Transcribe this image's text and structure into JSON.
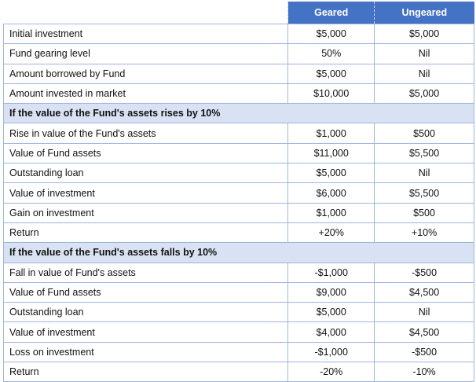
{
  "table": {
    "header": [
      "Geared",
      "Ungeared"
    ],
    "rows": [
      [
        "Initial investment",
        "$5,000",
        "$5,000"
      ],
      [
        "Fund gearing level",
        "50%",
        "Nil"
      ],
      [
        "Amount borrowed by Fund",
        "$5,000",
        "Nil"
      ],
      [
        "Amount invested in market",
        "$10,000",
        "$5,000"
      ],
      [
        "If the value of the Fund's assets rises by 10%"
      ],
      [
        "Rise in value of the Fund's assets",
        "$1,000",
        "$500"
      ],
      [
        "Value of Fund assets",
        "$11,000",
        "$5,500"
      ],
      [
        "Outstanding loan",
        "$5,000",
        "Nil"
      ],
      [
        "Value of investment",
        "$6,000",
        "$5,500"
      ],
      [
        "Gain on investment",
        "$1,000",
        "$500"
      ],
      [
        "Return",
        "+20%",
        "+10%"
      ],
      [
        "If the value of the Fund's assets falls by 10%"
      ],
      [
        "Fall in value of Fund's assets",
        "-$1,000",
        "-$500"
      ],
      [
        "Value of Fund assets",
        "$9,000",
        "$4,500"
      ],
      [
        "Outstanding loan",
        "$5,000",
        "Nil"
      ],
      [
        "Value of investment",
        "$4,000",
        "$4,500"
      ],
      [
        "Loss on investment",
        "-$1,000",
        "-$500"
      ],
      [
        "Return",
        "-20%",
        "-10%"
      ]
    ]
  }
}
